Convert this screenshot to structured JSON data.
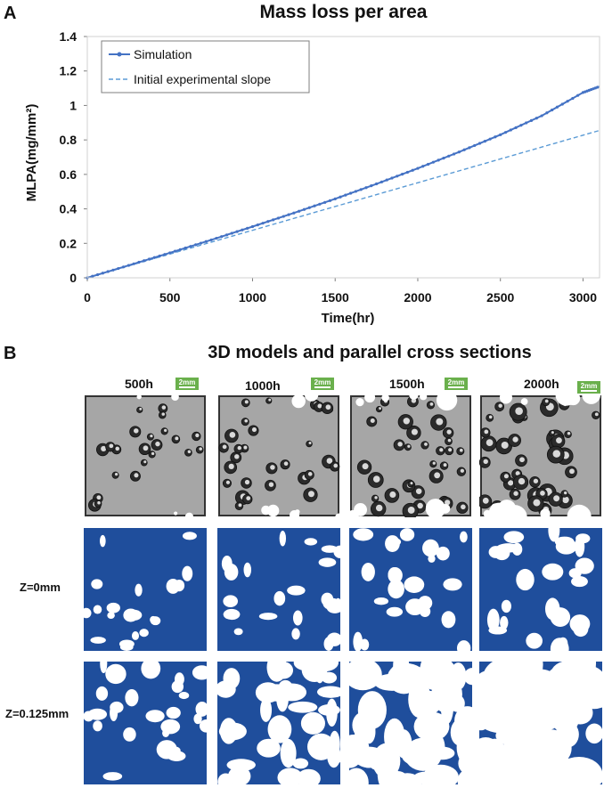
{
  "panel_a": {
    "letter": "A"
  },
  "panel_b": {
    "letter": "B",
    "title": "3D models and parallel cross sections",
    "columns": [
      "500h",
      "1000h",
      "1500h",
      "2000h"
    ],
    "scale_label": "2mm",
    "rows": [
      "",
      "Z=0mm",
      "Z=0.125mm"
    ]
  },
  "colors": {
    "simulation": "#4472c4",
    "experimental": "#5b9bd5",
    "section_fill": "#1f4e9c",
    "model_gray": "#a6a6a6"
  },
  "chart_data": {
    "type": "line",
    "title": "Mass loss per area",
    "xlabel": "Time(hr)",
    "ylabel": "MLPA(mg/mm²)",
    "xlim": [
      0,
      3100
    ],
    "ylim": [
      0,
      1.4
    ],
    "xticks": [
      0,
      500,
      1000,
      1500,
      2000,
      2500,
      3000
    ],
    "yticks": [
      0,
      0.2,
      0.4,
      0.6,
      0.8,
      1,
      1.2,
      1.4
    ],
    "grid": false,
    "legend": "top-left",
    "series": [
      {
        "name": "Simulation",
        "style": "solid-markers",
        "x": [
          0,
          250,
          500,
          750,
          1000,
          1250,
          1500,
          1750,
          2000,
          2250,
          2500,
          2750,
          3000,
          3100
        ],
        "y": [
          0,
          0.072,
          0.145,
          0.22,
          0.297,
          0.376,
          0.458,
          0.545,
          0.635,
          0.73,
          0.83,
          0.94,
          1.075,
          1.11
        ]
      },
      {
        "name": "Initial experimental slope",
        "style": "dashed",
        "x": [
          0,
          3100
        ],
        "y": [
          0,
          0.855
        ]
      }
    ]
  }
}
